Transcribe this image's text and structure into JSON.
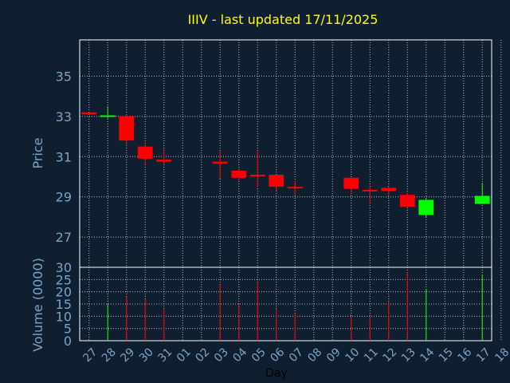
{
  "chart_data": {
    "type": "candlestick",
    "title": "IIIV - last updated 17/11/2025",
    "xlabel": "Day",
    "price_panel": {
      "ylabel": "Price",
      "ylim": [
        25.5,
        36.8
      ],
      "yticks": [
        27,
        29,
        31,
        33,
        35
      ]
    },
    "volume_panel": {
      "ylabel": "Volume (0000)",
      "ylim": [
        0,
        30
      ],
      "yticks": [
        0,
        5,
        10,
        15,
        20,
        25,
        30
      ]
    },
    "x_ticks": [
      "27",
      "28",
      "29",
      "30",
      "31",
      "01",
      "02",
      "03",
      "04",
      "05",
      "06",
      "07",
      "08",
      "09",
      "10",
      "11",
      "12",
      "13",
      "14",
      "15",
      "16",
      "17",
      "18"
    ],
    "candles": [
      {
        "day": "27",
        "open": 33.2,
        "close": 33.1,
        "high": 33.2,
        "low": 33.1,
        "volume": 0
      },
      {
        "day": "28",
        "open": 33.0,
        "close": 33.05,
        "high": 33.5,
        "low": 32.9,
        "volume": 15
      },
      {
        "day": "29",
        "open": 33.0,
        "close": 31.8,
        "high": 33.1,
        "low": 31.6,
        "volume": 18
      },
      {
        "day": "30",
        "open": 31.5,
        "close": 30.9,
        "high": 31.7,
        "low": 30.6,
        "volume": 17
      },
      {
        "day": "31",
        "open": 30.85,
        "close": 30.75,
        "high": 31.4,
        "low": 30.6,
        "volume": 13
      },
      {
        "day": "03",
        "open": 30.75,
        "close": 30.65,
        "high": 31.3,
        "low": 29.9,
        "volume": 23
      },
      {
        "day": "04",
        "open": 30.3,
        "close": 29.95,
        "high": 30.4,
        "low": 29.8,
        "volume": 15
      },
      {
        "day": "05",
        "open": 30.1,
        "close": 30.05,
        "high": 31.3,
        "low": 29.5,
        "volume": 24
      },
      {
        "day": "06",
        "open": 30.1,
        "close": 29.5,
        "high": 30.1,
        "low": 29.3,
        "volume": 13
      },
      {
        "day": "07",
        "open": 29.5,
        "close": 29.45,
        "high": 29.8,
        "low": 29.1,
        "volume": 11
      },
      {
        "day": "10",
        "open": 29.95,
        "close": 29.4,
        "high": 29.95,
        "low": 29.1,
        "volume": 10
      },
      {
        "day": "11",
        "open": 29.35,
        "close": 29.3,
        "high": 29.5,
        "low": 28.7,
        "volume": 10
      },
      {
        "day": "12",
        "open": 29.45,
        "close": 29.3,
        "high": 29.5,
        "low": 29.1,
        "volume": 16
      },
      {
        "day": "13",
        "open": 29.1,
        "close": 28.5,
        "high": 29.2,
        "low": 28.4,
        "volume": 28
      },
      {
        "day": "14",
        "open": 28.1,
        "close": 28.85,
        "high": 28.9,
        "low": 28.0,
        "volume": 21
      },
      {
        "day": "17",
        "open": 28.65,
        "close": 29.05,
        "high": 29.7,
        "low": 28.65,
        "volume": 27
      }
    ],
    "grid": true,
    "colors": {
      "background": "#0f1f30",
      "plot_border": "#ffffff",
      "grid": "#ffffff",
      "up": "#00ff00",
      "down": "#ff0000",
      "title": "#ffff00",
      "axis_text": "#7aa5c8",
      "xlabel": "#000000"
    }
  }
}
